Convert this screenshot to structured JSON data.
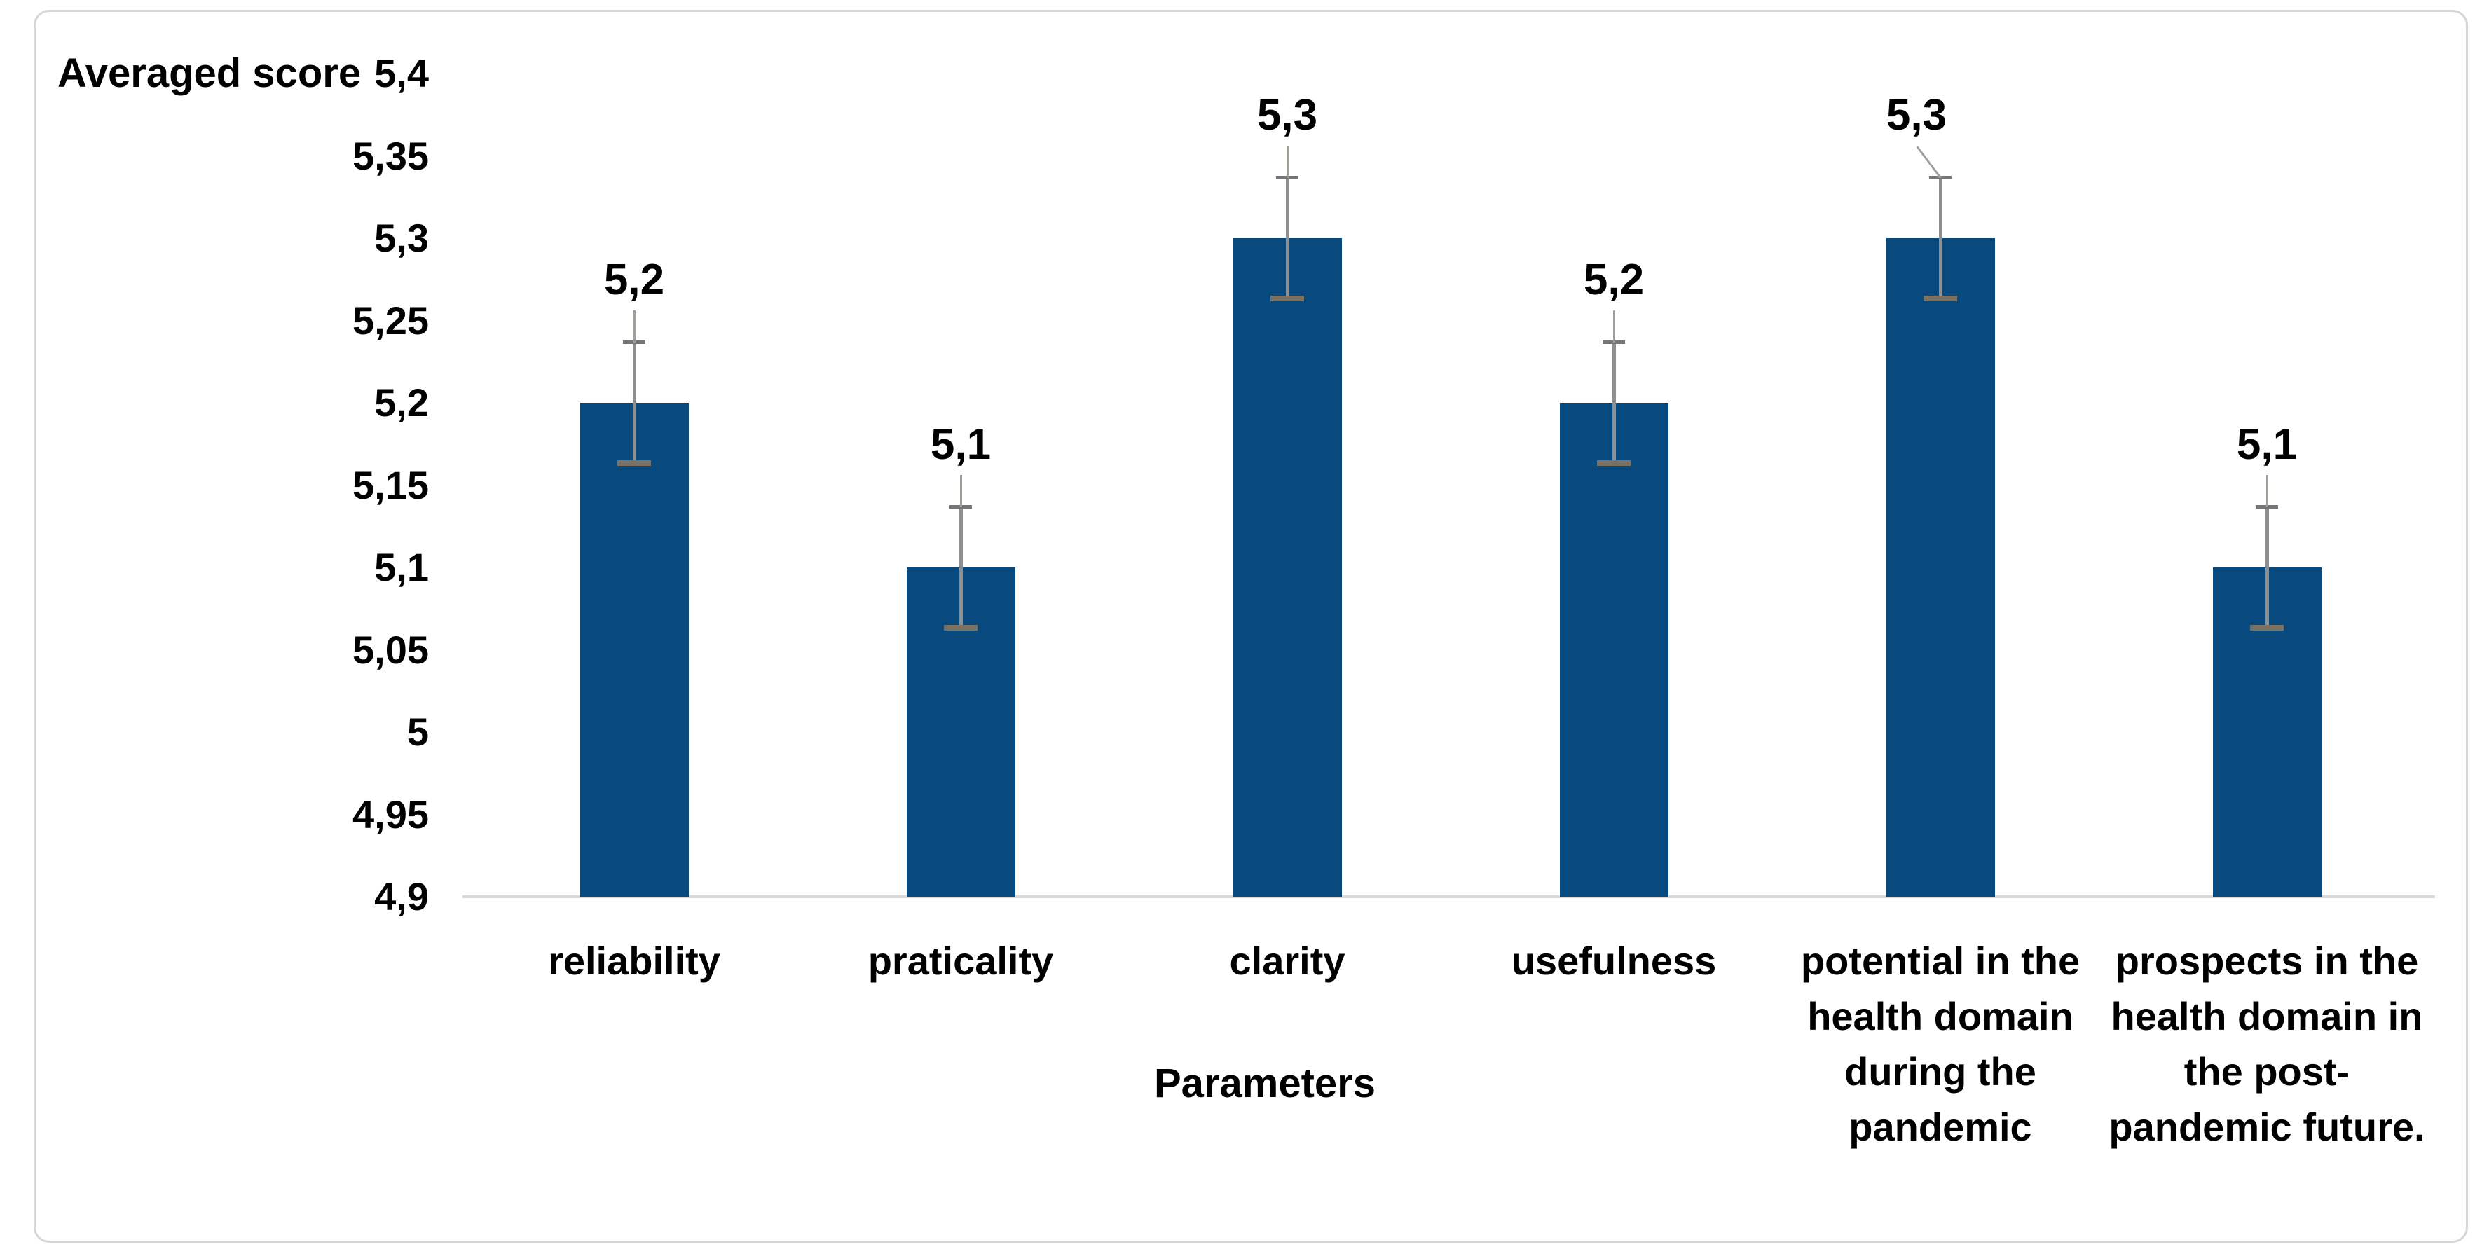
{
  "chart_data": {
    "type": "bar",
    "y_axis_title": "Averaged score",
    "x_axis_title": "Parameters",
    "categories": [
      "reliability",
      "praticality",
      "clarity",
      "usefulness",
      "potential in the\nhealth domain\nduring the\npandemic",
      "prospects in the\nhealth domain in\nthe post-\npandemic future."
    ],
    "values": [
      5.2,
      5.1,
      5.3,
      5.2,
      5.3,
      5.1
    ],
    "data_labels": [
      "5,2",
      "5,1",
      "5,3",
      "5,2",
      "5,3",
      "5,1"
    ],
    "error_bars": {
      "visible": true,
      "estimated_plus_minus": 0.037,
      "caps": true
    },
    "yticks": [
      "5,4",
      "5,35",
      "5,3",
      "5,25",
      "5,2",
      "5,15",
      "5,1",
      "5,05",
      "5",
      "4,95",
      "4,9"
    ],
    "ylim": [
      4.9,
      5.4
    ],
    "ytick_step": 0.05,
    "decimal_separator": ",",
    "grid": false,
    "legend": null,
    "colors": {
      "bar": "#084a7e",
      "error_whisker": "#8f8f8f",
      "error_cap_top": "#767676",
      "error_cap_bottom": "#7b7264",
      "error_leader": "#a0a09a",
      "axis_line": "#d9d9d9",
      "frame_border": "#d6d6d6",
      "text": "#000000",
      "background": "#ffffff"
    }
  }
}
